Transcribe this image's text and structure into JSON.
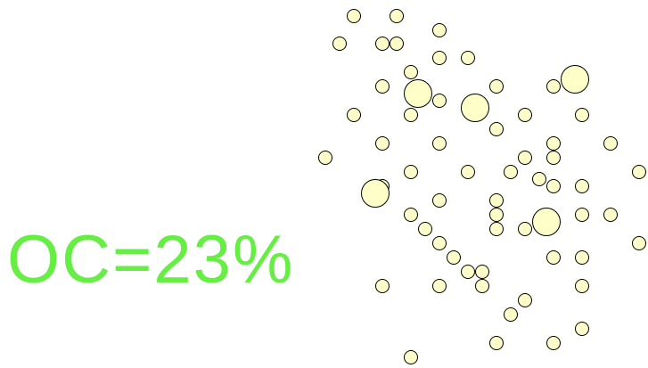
{
  "label": {
    "text": "OC=23%",
    "color": "#66ee44"
  },
  "dots": {
    "fill": "#fefec8",
    "stroke": "#000000"
  }
}
